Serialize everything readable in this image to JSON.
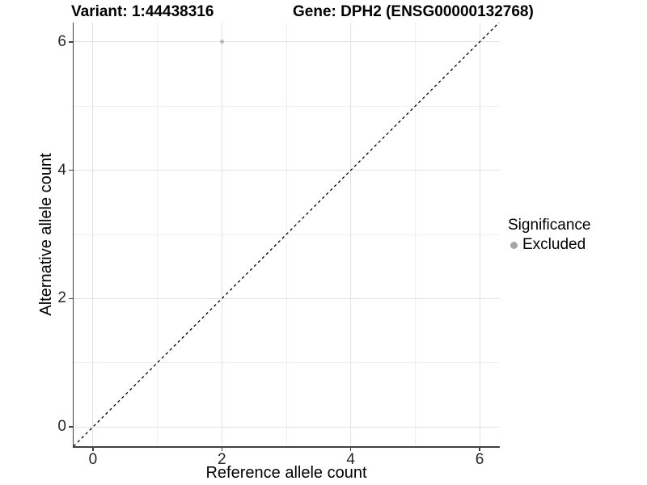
{
  "chart_data": {
    "type": "scatter",
    "title_left": "Variant: 1:44438316",
    "title_right": "Gene: DPH2 (ENSG00000132768)",
    "xlabel": "Reference allele count",
    "ylabel": "Alternative allele count",
    "xlim": [
      -0.3,
      6.3
    ],
    "ylim": [
      -0.3,
      6.3
    ],
    "x_major_ticks": [
      0,
      2,
      4,
      6
    ],
    "y_major_ticks": [
      0,
      2,
      4,
      6
    ],
    "x_minor_ticks": [
      1,
      3,
      5
    ],
    "y_minor_ticks": [
      1,
      3,
      5
    ],
    "grid": true,
    "points": [
      {
        "x": 2,
        "y": 6,
        "series": "Excluded"
      }
    ],
    "identity_line": {
      "style": "dashed",
      "slope": 1,
      "intercept": 0,
      "color": "#000000"
    },
    "legend": {
      "title": "Significance",
      "position": "right",
      "entries": [
        {
          "label": "Excluded",
          "color": "#a6a6a6"
        }
      ]
    },
    "colors": {
      "point": "#b8b8b8",
      "grid_major": "#e2e2e2",
      "grid_minor": "#efefef",
      "axis_line": "#404040",
      "tick_text": "#262626"
    }
  }
}
